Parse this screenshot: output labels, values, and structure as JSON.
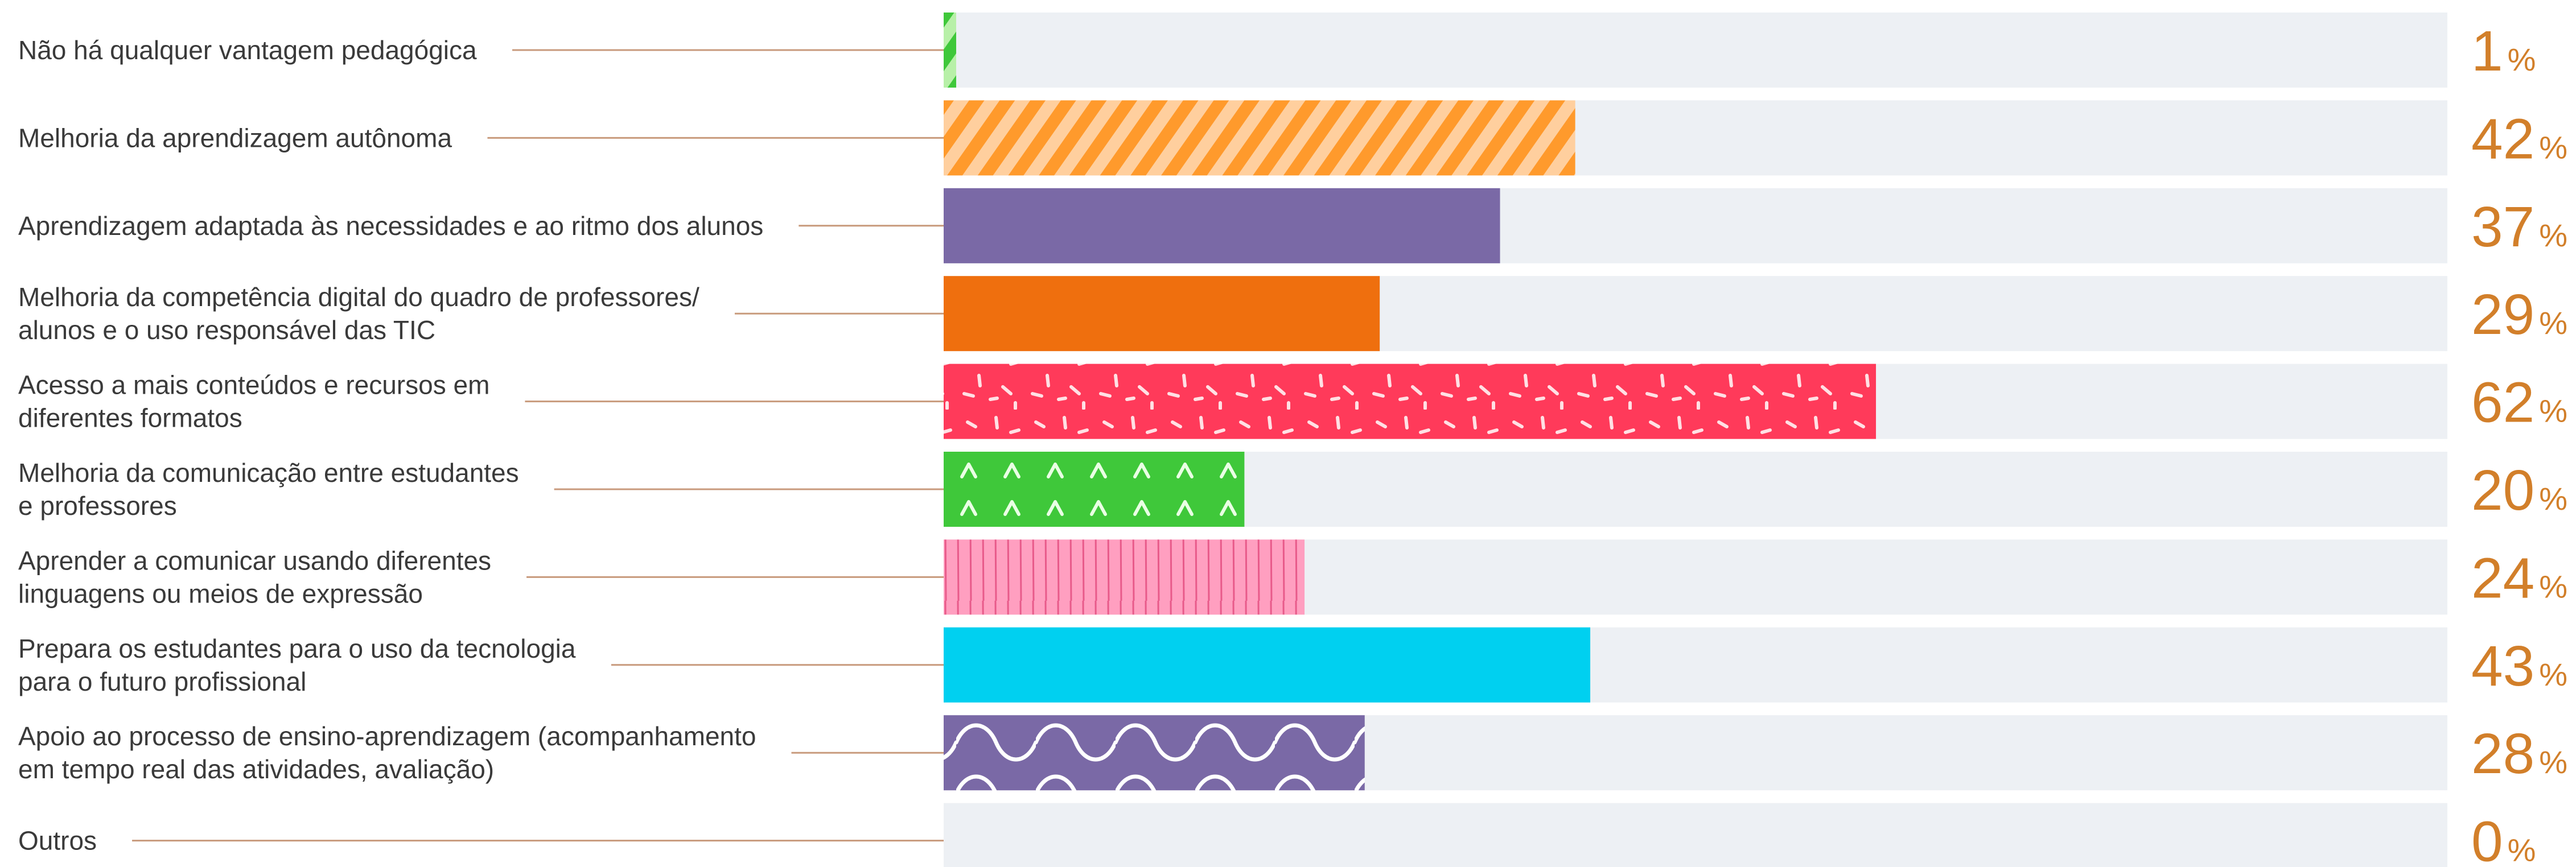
{
  "chart_data": {
    "type": "bar",
    "orientation": "horizontal",
    "categories": [
      [
        "Não há qualquer vantagem pedagógica"
      ],
      [
        "Melhoria da aprendizagem autônoma"
      ],
      [
        "Aprendizagem adaptada às necessidades e ao ritmo dos alunos"
      ],
      [
        "Melhoria da competência digital do quadro de professores/",
        "alunos e o uso responsável das TIC"
      ],
      [
        "Acesso a mais conteúdos e recursos em",
        "diferentes formatos"
      ],
      [
        "Melhoria da comunicação entre estudantes",
        "e professores"
      ],
      [
        "Aprender a comunicar usando diferentes",
        "linguagens ou meios de expressão"
      ],
      [
        "Prepara os estudantes para o uso da tecnologia",
        "para o futuro profissional"
      ],
      [
        "Apoio ao processo de ensino-aprendizagem (acompanhamento",
        "em tempo real das atividades, avaliação)"
      ],
      [
        "Outros"
      ]
    ],
    "values": [
      1,
      42,
      37,
      29,
      62,
      20,
      24,
      43,
      28,
      0
    ],
    "value_suffix": "%",
    "xlim": [
      0,
      100
    ],
    "grid": false,
    "colors": [
      "#3fc83a",
      "#ff9a2c",
      "#7a69a6",
      "#ef6f0e",
      "#ff3a5a",
      "#3fc83a",
      "#ff9fc0",
      "#00d0f0",
      "#7a69a6",
      "#7a69a6"
    ],
    "patterns": [
      "hatch",
      "hatch",
      "solid",
      "solid",
      "confetti",
      "carets",
      "vlines",
      "solid",
      "waves",
      "solid"
    ]
  },
  "style": {
    "track_color": "#edf0f4",
    "leader_color": "#c89a7c",
    "label_color": "#3a3a3a",
    "value_color": "#d27f2a"
  }
}
